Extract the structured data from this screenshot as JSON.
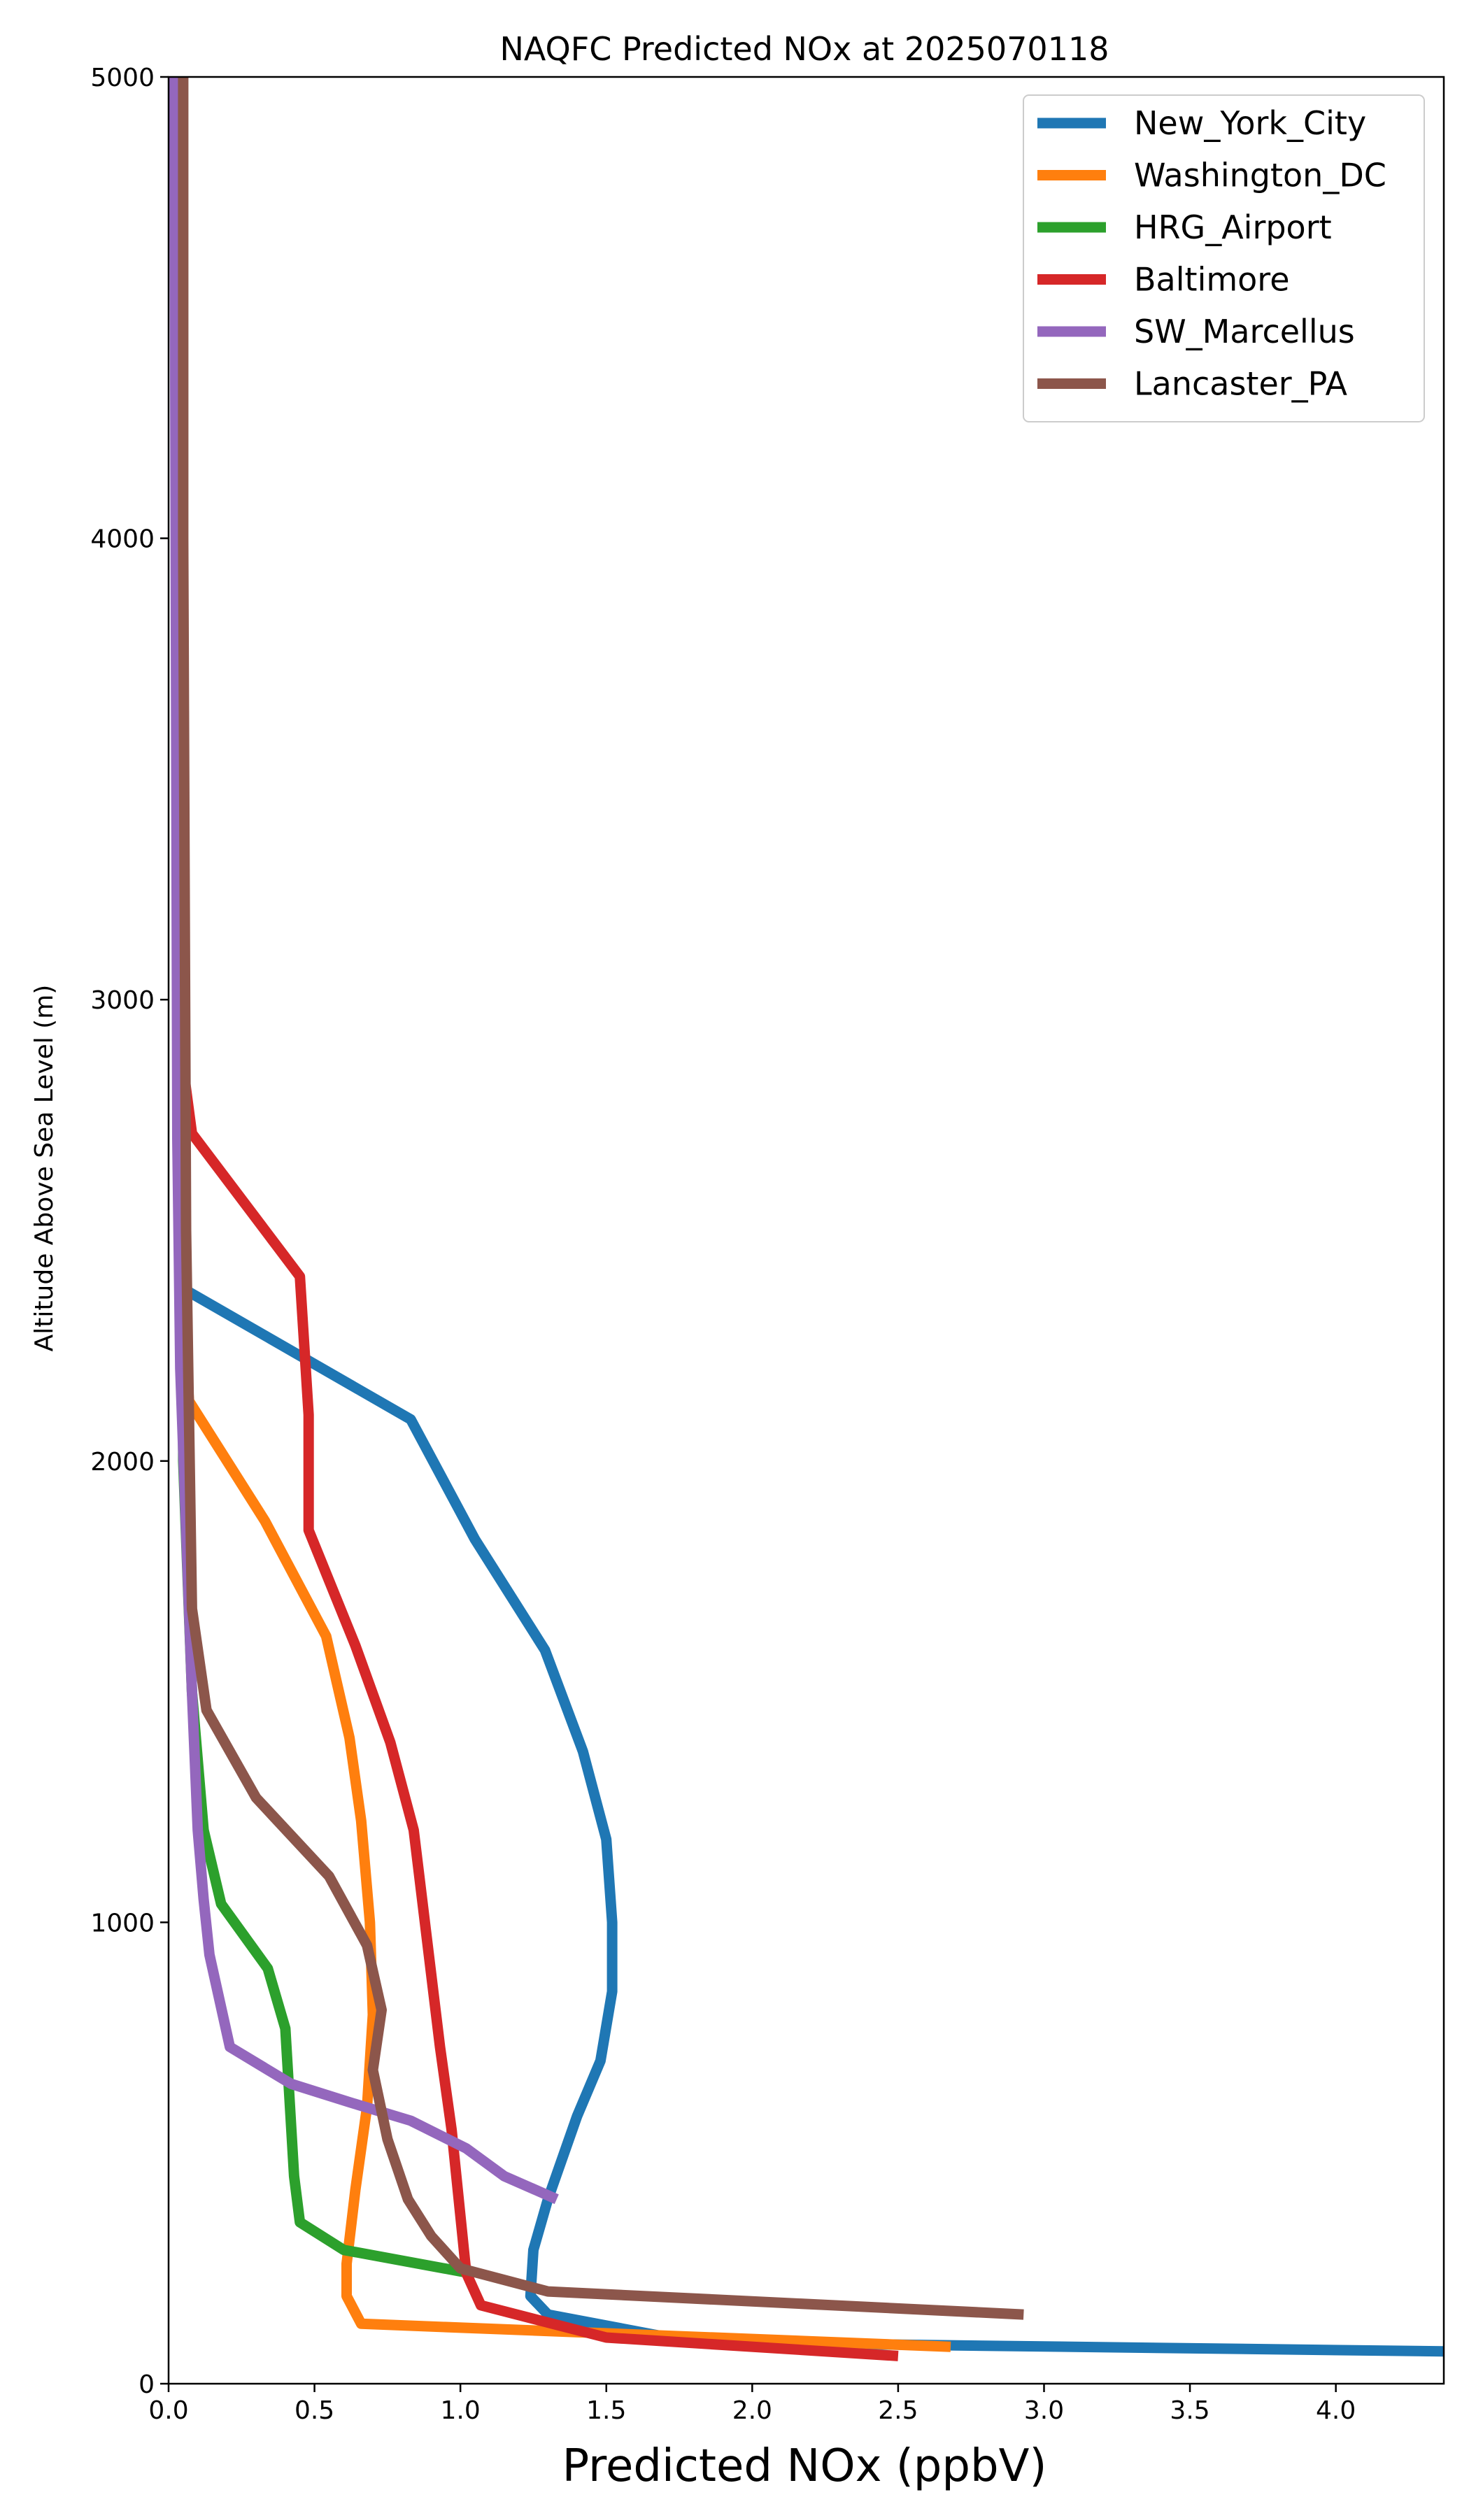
{
  "chart_data": {
    "type": "line",
    "title": "NAQFC Predicted NOx at 2025070118",
    "xlabel": "Predicted NOx (ppbV)",
    "ylabel": "Altitude Above Sea Level (m)",
    "xlim": [
      0,
      4.37
    ],
    "ylim": [
      0,
      5000
    ],
    "xticks": [
      0,
      0.5,
      1,
      1.5,
      2,
      2.5,
      3,
      3.5,
      4
    ],
    "xtick_labels": [
      "0.0",
      "0.5",
      "1.0",
      "1.5",
      "2.0",
      "2.5",
      "3.0",
      "3.5",
      "4.0"
    ],
    "yticks": [
      0,
      1000,
      2000,
      3000,
      4000,
      5000
    ],
    "ytick_labels": [
      "0",
      "1000",
      "2000",
      "3000",
      "4000",
      "5000"
    ],
    "grid": false,
    "legend_position": "top-right",
    "series": [
      {
        "name": "New_York_City",
        "color": "#1f77b4",
        "points": [
          [
            4.37,
            70
          ],
          [
            1.8,
            90
          ],
          [
            1.3,
            150
          ],
          [
            1.24,
            190
          ],
          [
            1.25,
            290
          ],
          [
            1.3,
            400
          ],
          [
            1.4,
            580
          ],
          [
            1.48,
            700
          ],
          [
            1.52,
            850
          ],
          [
            1.52,
            1000
          ],
          [
            1.5,
            1180
          ],
          [
            1.42,
            1370
          ],
          [
            1.29,
            1590
          ],
          [
            1.05,
            1830
          ],
          [
            0.83,
            2090
          ],
          [
            0.06,
            2370
          ],
          [
            0.03,
            2800
          ],
          [
            0.03,
            5000
          ]
        ]
      },
      {
        "name": "Washington_DC",
        "color": "#ff7f0e",
        "points": [
          [
            2.68,
            80
          ],
          [
            0.66,
            130
          ],
          [
            0.61,
            190
          ],
          [
            0.61,
            260
          ],
          [
            0.64,
            420
          ],
          [
            0.68,
            600
          ],
          [
            0.7,
            800
          ],
          [
            0.69,
            1000
          ],
          [
            0.66,
            1220
          ],
          [
            0.62,
            1400
          ],
          [
            0.54,
            1620
          ],
          [
            0.33,
            1870
          ],
          [
            0.07,
            2130
          ],
          [
            0.04,
            2400
          ],
          [
            0.03,
            5000
          ]
        ]
      },
      {
        "name": "HRG_Airport",
        "color": "#2ca02c",
        "points": [
          [
            1.03,
            240
          ],
          [
            0.6,
            290
          ],
          [
            0.45,
            350
          ],
          [
            0.43,
            450
          ],
          [
            0.4,
            770
          ],
          [
            0.34,
            900
          ],
          [
            0.18,
            1040
          ],
          [
            0.12,
            1200
          ],
          [
            0.08,
            1500
          ],
          [
            0.05,
            2000
          ],
          [
            0.03,
            5000
          ]
        ]
      },
      {
        "name": "Baltimore",
        "color": "#d62728",
        "points": [
          [
            2.5,
            60
          ],
          [
            1.5,
            100
          ],
          [
            1.07,
            170
          ],
          [
            1.02,
            240
          ],
          [
            0.97,
            550
          ],
          [
            0.93,
            730
          ],
          [
            0.84,
            1200
          ],
          [
            0.76,
            1390
          ],
          [
            0.64,
            1600
          ],
          [
            0.48,
            1850
          ],
          [
            0.48,
            2100
          ],
          [
            0.45,
            2400
          ],
          [
            0.08,
            2710
          ],
          [
            0.04,
            2900
          ],
          [
            0.03,
            5000
          ]
        ]
      },
      {
        "name": "SW_Marcellus",
        "color": "#9467bd",
        "points": [
          [
            1.33,
            400
          ],
          [
            1.15,
            450
          ],
          [
            1.02,
            510
          ],
          [
            0.83,
            570
          ],
          [
            0.62,
            610
          ],
          [
            0.42,
            650
          ],
          [
            0.21,
            730
          ],
          [
            0.14,
            930
          ],
          [
            0.12,
            1050
          ],
          [
            0.1,
            1200
          ],
          [
            0.08,
            1500
          ],
          [
            0.04,
            2200
          ],
          [
            0.03,
            2700
          ],
          [
            0.02,
            5000
          ]
        ]
      },
      {
        "name": "Lancaster_PA",
        "color": "#8c564b",
        "points": [
          [
            2.93,
            150
          ],
          [
            1.3,
            200
          ],
          [
            1.0,
            250
          ],
          [
            0.9,
            320
          ],
          [
            0.82,
            400
          ],
          [
            0.75,
            530
          ],
          [
            0.7,
            680
          ],
          [
            0.73,
            810
          ],
          [
            0.68,
            950
          ],
          [
            0.55,
            1100
          ],
          [
            0.3,
            1270
          ],
          [
            0.13,
            1460
          ],
          [
            0.08,
            1680
          ],
          [
            0.06,
            2500
          ],
          [
            0.05,
            4000
          ],
          [
            0.05,
            5000
          ]
        ]
      }
    ]
  }
}
